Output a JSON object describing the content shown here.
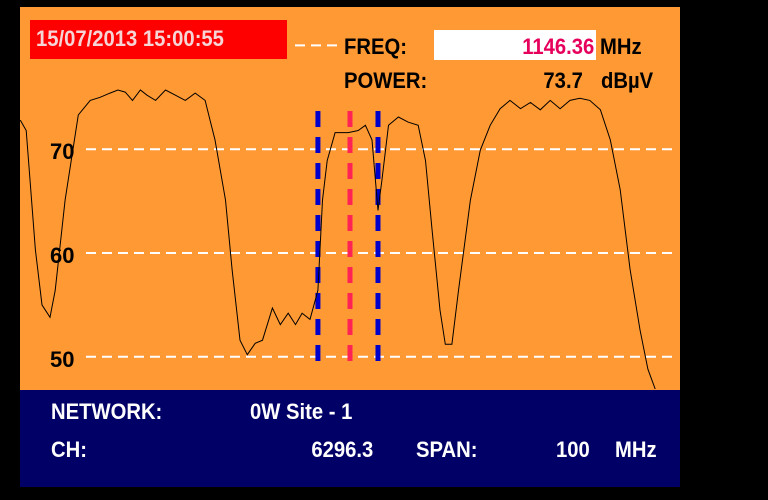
{
  "header": {
    "datetime": "15/07/2013 15:00:55",
    "freq_label": "FREQ:",
    "freq_value": "1146.36",
    "freq_unit": "MHz",
    "power_label": "POWER:",
    "power_value": "73.7",
    "power_unit": "dBµV"
  },
  "footer": {
    "network_label": "NETWORK:",
    "network_value": "0W Site - 1",
    "ch_label": "CH:",
    "ch_value": "6296.3",
    "span_label": "SPAN:",
    "span_value": "100",
    "span_unit": "MHz"
  },
  "colors": {
    "screen": "#ff9933",
    "info_panel": "#000066",
    "date_box": "#ff0000",
    "freq_value": "#e6005c",
    "marker_center": "#ff2255",
    "marker_band": "#0000cc"
  },
  "chart_data": {
    "type": "line",
    "xlabel": "",
    "ylabel": "",
    "xlim": [
      1096.36,
      1196.36
    ],
    "ylim": [
      46.8,
      83.7
    ],
    "yticks": [
      70,
      60,
      50
    ],
    "ytick_labels": [
      "70",
      "60",
      "50"
    ],
    "grid": true,
    "reference_level": 80,
    "markers": {
      "center": 1146.36,
      "band_low": 1141.5,
      "band_high": 1150.6
    },
    "trace": {
      "x": [
        1096.4,
        1097.3,
        1098.7,
        1099.7,
        1100.9,
        1101.7,
        1103.2,
        1105.2,
        1107.0,
        1108.5,
        1110.0,
        1111.2,
        1112.3,
        1113.4,
        1114.6,
        1115.6,
        1116.9,
        1118.4,
        1119.9,
        1121.4,
        1122.9,
        1124.4,
        1125.9,
        1127.5,
        1128.5,
        1129.7,
        1130.8,
        1132.0,
        1133.1,
        1134.6,
        1135.8,
        1137.0,
        1138.1,
        1139.1,
        1140.3,
        1141.5,
        1142.2,
        1142.9,
        1144.1,
        1146.1,
        1147.6,
        1148.7,
        1149.7,
        1150.6,
        1151.2,
        1152.2,
        1153.7,
        1155.2,
        1156.7,
        1157.8,
        1158.8,
        1160.0,
        1160.8,
        1161.8,
        1162.8,
        1164.6,
        1166.1,
        1167.6,
        1169.1,
        1170.6,
        1172.2,
        1173.7,
        1175.2,
        1176.7,
        1178.2,
        1179.7,
        1181.2,
        1182.7,
        1184.3,
        1185.8,
        1187.3,
        1188.8,
        1190.3,
        1191.5,
        1192.6
      ],
      "y": [
        72.8,
        71.8,
        60.3,
        55.0,
        53.8,
        56.4,
        65.1,
        73.3,
        74.7,
        75.0,
        75.4,
        75.7,
        75.5,
        74.7,
        75.7,
        75.2,
        74.7,
        75.7,
        75.2,
        74.7,
        75.4,
        74.7,
        70.9,
        65.1,
        58.4,
        51.6,
        50.2,
        51.3,
        51.6,
        54.7,
        53.1,
        54.2,
        53.1,
        54.2,
        53.6,
        56.4,
        65.1,
        68.9,
        71.6,
        71.6,
        71.8,
        72.3,
        70.9,
        64.1,
        67.0,
        72.3,
        73.1,
        72.6,
        72.3,
        68.9,
        62.2,
        54.5,
        51.2,
        51.2,
        56.4,
        65.1,
        69.9,
        72.3,
        73.9,
        74.7,
        73.9,
        74.5,
        73.8,
        74.7,
        73.9,
        74.7,
        74.9,
        74.7,
        73.8,
        70.9,
        66.1,
        58.4,
        52.6,
        48.8,
        46.9
      ]
    }
  }
}
